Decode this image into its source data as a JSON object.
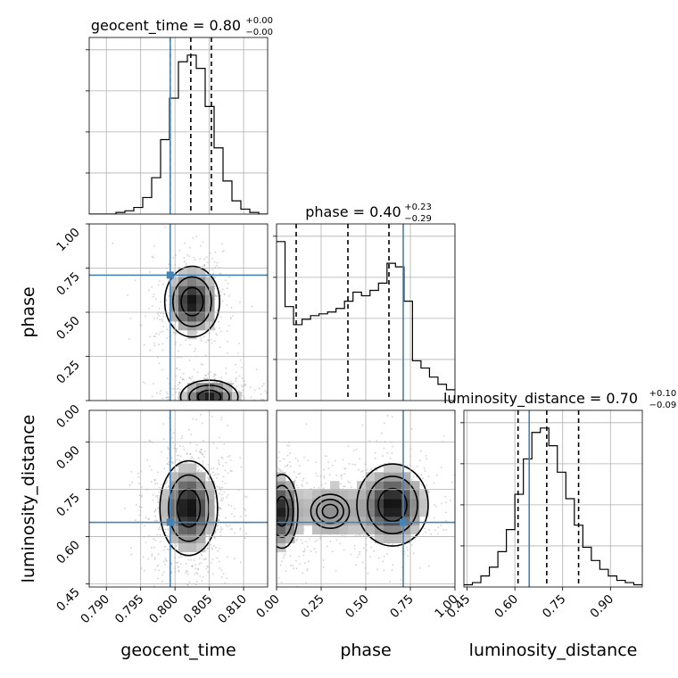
{
  "chart_data": {
    "type": "corner",
    "parameters": [
      "geocent_time",
      "phase",
      "luminosity_distance"
    ],
    "truths": {
      "geocent_time": 0.7993,
      "phase": 0.71,
      "luminosity_distance": 0.645
    },
    "truth_color": "#4682b4",
    "grid": true,
    "titles": [
      {
        "param": "geocent_time",
        "label": "geocent_time = 0.80",
        "sup": "+0.00",
        "sub": "−0.00"
      },
      {
        "param": "phase",
        "label": "phase = 0.40",
        "sup": "+0.23",
        "sub": "−0.29"
      },
      {
        "param": "luminosity_distance",
        "label": "luminosity_distance = 0.70",
        "sup": "+0.10",
        "sub": "−0.09"
      }
    ],
    "axes": {
      "geocent_time": {
        "range": [
          0.7875,
          0.8135
        ],
        "ticks": [
          0.79,
          0.795,
          0.8,
          0.805,
          0.81
        ],
        "tick_labels": [
          "0.790",
          "0.795",
          "0.800",
          "0.805",
          "0.810"
        ]
      },
      "phase": {
        "range": [
          0.0,
          1.0
        ],
        "ticks": [
          0.0,
          0.25,
          0.5,
          0.75,
          1.0
        ],
        "tick_labels": [
          "0.00",
          "0.25",
          "0.50",
          "0.75",
          "1.00"
        ]
      },
      "luminosity_distance": {
        "range": [
          0.44,
          1.0
        ],
        "ticks": [
          0.45,
          0.6,
          0.75,
          0.9
        ],
        "tick_labels": [
          "0.45",
          "0.60",
          "0.75",
          "0.90"
        ]
      }
    },
    "histograms": [
      {
        "param": "geocent_time",
        "range": [
          0.7875,
          0.8135
        ],
        "values": [
          0,
          0,
          0,
          1,
          2,
          4,
          10,
          22,
          45,
          70,
          92,
          96,
          88,
          65,
          40,
          20,
          8,
          3,
          1,
          0
        ],
        "quantiles": [
          0.7993,
          0.8023,
          0.8053
        ]
      },
      {
        "param": "phase",
        "range": [
          0.0,
          1.0
        ],
        "values": [
          88,
          52,
          42,
          45,
          47,
          48,
          49,
          51,
          55,
          60,
          58,
          61,
          65,
          76,
          74,
          55,
          22,
          18,
          13,
          9,
          6
        ],
        "quantiles": [
          0.11,
          0.4,
          0.63
        ]
      },
      {
        "param": "luminosity_distance",
        "range": [
          0.44,
          1.0
        ],
        "values": [
          1,
          2,
          5,
          9,
          16,
          26,
          42,
          58,
          70,
          72,
          64,
          52,
          40,
          28,
          18,
          12,
          8,
          5,
          3,
          2,
          1
        ],
        "quantiles": [
          0.61,
          0.7,
          0.8
        ]
      }
    ],
    "densities_2d": [
      {
        "x": "geocent_time",
        "y": "phase",
        "modes": [
          {
            "x": 0.8025,
            "y": 0.56,
            "sx": 0.002,
            "sy": 0.1,
            "w": 1.0
          },
          {
            "x": 0.805,
            "y": 0.02,
            "sx": 0.0022,
            "sy": 0.05,
            "w": 0.95
          }
        ]
      },
      {
        "x": "geocent_time",
        "y": "luminosity_distance",
        "modes": [
          {
            "x": 0.802,
            "y": 0.69,
            "sx": 0.0021,
            "sy": 0.075,
            "w": 1.0
          }
        ]
      },
      {
        "x": "phase",
        "y": "luminosity_distance",
        "modes": [
          {
            "x": 0.03,
            "y": 0.68,
            "sx": 0.05,
            "sy": 0.065,
            "w": 0.9
          },
          {
            "x": 0.65,
            "y": 0.7,
            "sx": 0.1,
            "sy": 0.065,
            "w": 1.0
          },
          {
            "x": 0.3,
            "y": 0.68,
            "sx": 0.12,
            "sy": 0.06,
            "w": 0.45
          }
        ]
      }
    ]
  }
}
